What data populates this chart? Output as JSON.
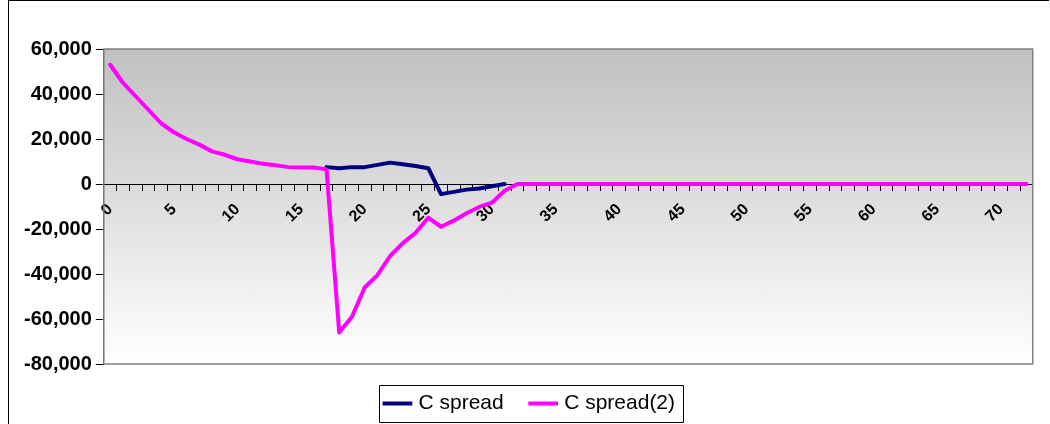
{
  "chart_data": {
    "type": "line",
    "legend": "bottom",
    "grid": false,
    "categories": [
      "0",
      null,
      null,
      null,
      null,
      "5",
      null,
      null,
      null,
      null,
      "10",
      null,
      null,
      null,
      null,
      "15",
      null,
      null,
      null,
      null,
      "20",
      null,
      null,
      null,
      null,
      "25",
      null,
      null,
      null,
      null,
      "30",
      null,
      null,
      null,
      null,
      "35",
      null,
      null,
      null,
      null,
      "40",
      null,
      null,
      null,
      null,
      "45",
      null,
      null,
      null,
      null,
      "50",
      null,
      null,
      null,
      null,
      "55",
      null,
      null,
      null,
      null,
      "60",
      null,
      null,
      null,
      null,
      "65",
      null,
      null,
      null,
      null,
      "70",
      null,
      null
    ],
    "ylim": [
      -80000,
      60000
    ],
    "yticks": [
      {
        "value": -80000,
        "label": "-80,000"
      },
      {
        "value": -60000,
        "label": "-60,000"
      },
      {
        "value": -40000,
        "label": "-40,000"
      },
      {
        "value": -20000,
        "label": "-20,000"
      },
      {
        "value": 0,
        "label": "0"
      },
      {
        "value": 20000,
        "label": "20,000"
      },
      {
        "value": 40000,
        "label": "40,000"
      },
      {
        "value": 60000,
        "label": "60,000"
      }
    ],
    "series": [
      {
        "name": "C spread",
        "color": "#000080",
        "values": [
          null,
          null,
          null,
          null,
          null,
          null,
          null,
          null,
          null,
          null,
          null,
          null,
          null,
          null,
          null,
          null,
          null,
          7500,
          7000,
          7500,
          7500,
          8500,
          9500,
          8800,
          8000,
          7000,
          -4500,
          -3500,
          -2500,
          -2000,
          -1000,
          0,
          null,
          null,
          null,
          null,
          null,
          null,
          null,
          null,
          null,
          null,
          null,
          null,
          null,
          null,
          null,
          null,
          null,
          null,
          null,
          null,
          null,
          null,
          null,
          null,
          null,
          null,
          null,
          null,
          null,
          null,
          null,
          null,
          null,
          null,
          null,
          null,
          null,
          null,
          null,
          null,
          null
        ]
      },
      {
        "name": "C spread(2)",
        "color": "#ff00ff",
        "values": [
          53000,
          45000,
          39000,
          33000,
          27000,
          23000,
          20000,
          17500,
          14500,
          13000,
          11000,
          10000,
          9000,
          8300,
          7500,
          7300,
          7300,
          6500,
          -66000,
          -59000,
          -46000,
          -40500,
          -32000,
          -26300,
          -21700,
          -15000,
          -19000,
          -16300,
          -13000,
          -10200,
          -8300,
          -3000,
          0,
          0,
          0,
          0,
          0,
          0,
          0,
          0,
          0,
          0,
          0,
          0,
          0,
          0,
          0,
          0,
          0,
          0,
          0,
          0,
          0,
          0,
          0,
          0,
          0,
          0,
          0,
          0,
          0,
          0,
          0,
          0,
          0,
          0,
          0,
          0,
          0,
          0,
          0,
          0,
          0
        ]
      }
    ]
  }
}
